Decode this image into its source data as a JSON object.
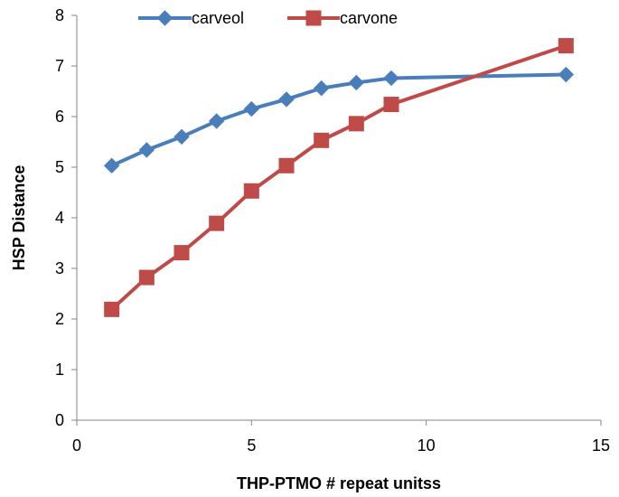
{
  "chart_data": {
    "type": "line",
    "xlabel": "THP-PTMO # repeat unitss",
    "ylabel": "HSP Distance",
    "xlim": [
      0,
      15
    ],
    "ylim": [
      0,
      8
    ],
    "x_ticks": [
      0,
      5,
      10,
      15
    ],
    "y_ticks": [
      0,
      1,
      2,
      3,
      4,
      5,
      6,
      7,
      8
    ],
    "grid": false,
    "legend_position": "top",
    "series": [
      {
        "name": "carveol",
        "color": "#4A7EBB",
        "marker": "diamond",
        "x": [
          1,
          2,
          3,
          4,
          5,
          6,
          7,
          8,
          9,
          14
        ],
        "y": [
          5.03,
          5.34,
          5.6,
          5.91,
          6.15,
          6.34,
          6.56,
          6.67,
          6.76,
          6.83
        ]
      },
      {
        "name": "carvone",
        "color": "#BE4B48",
        "marker": "square",
        "x": [
          1,
          2,
          3,
          4,
          5,
          6,
          7,
          8,
          9,
          14
        ],
        "y": [
          2.19,
          2.82,
          3.31,
          3.89,
          4.53,
          5.03,
          5.53,
          5.86,
          6.24,
          7.4
        ]
      }
    ]
  }
}
